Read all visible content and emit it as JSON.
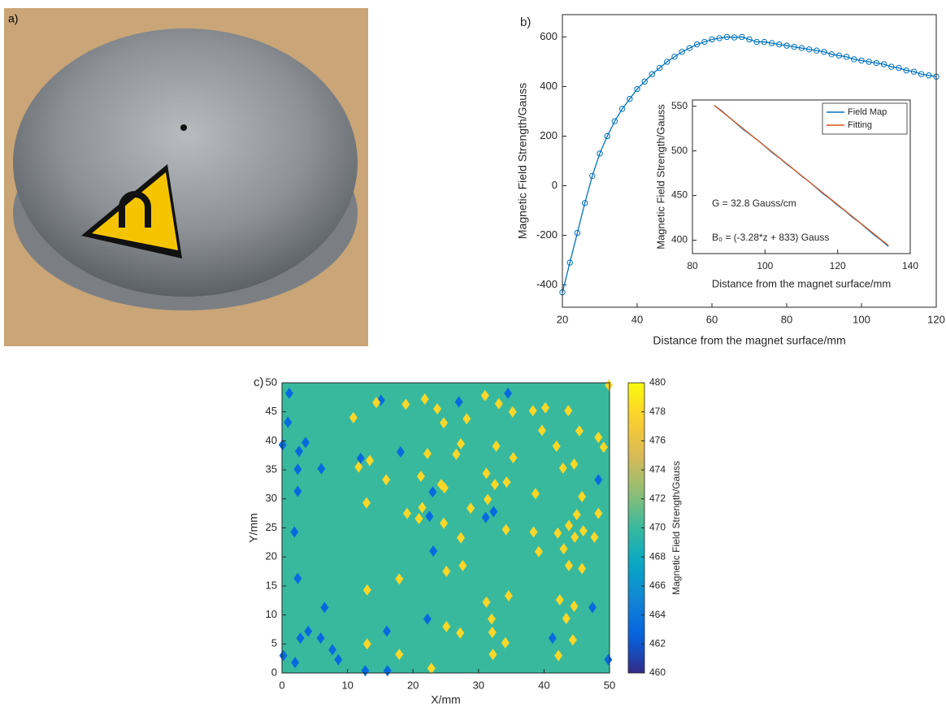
{
  "photo": {
    "label": "a)"
  },
  "chart_data": [
    {
      "type": "line",
      "panel_label": "b)",
      "xlabel": "Distance from the magnet surface/mm",
      "ylabel": "Magnetic Field Strength/Gauss",
      "x": [
        20,
        22,
        24,
        26,
        28,
        30,
        32,
        34,
        36,
        38,
        40,
        42,
        44,
        46,
        48,
        50,
        52,
        54,
        56,
        58,
        60,
        62,
        64,
        66,
        68,
        70,
        72,
        74,
        76,
        78,
        80,
        82,
        84,
        86,
        88,
        90,
        92,
        94,
        96,
        98,
        100,
        102,
        104,
        106,
        108,
        110,
        112,
        114,
        116,
        118,
        120
      ],
      "series": [
        {
          "color": "#0072bd",
          "marker": "circle",
          "values": [
            -430,
            -310,
            -190,
            -70,
            40,
            130,
            200,
            260,
            310,
            350,
            390,
            420,
            450,
            475,
            500,
            520,
            540,
            555,
            570,
            580,
            590,
            595,
            600,
            598,
            600,
            590,
            580,
            580,
            575,
            570,
            565,
            560,
            555,
            550,
            545,
            540,
            530,
            525,
            520,
            510,
            505,
            500,
            495,
            490,
            480,
            475,
            465,
            460,
            450,
            445,
            440
          ]
        }
      ],
      "xlim": [
        20,
        120
      ],
      "ylim": [
        -490,
        690
      ],
      "xticks": [
        20,
        40,
        60,
        80,
        100,
        120
      ],
      "yticks": [
        -400,
        -200,
        0,
        200,
        400,
        600
      ]
    },
    {
      "type": "line",
      "inset": true,
      "xlabel": "Distance from the magnet surface/mm",
      "ylabel": "Magnetic Field Strength/Gauss",
      "legend": "upper right",
      "series": [
        {
          "name": "Field Map",
          "color": "#0072bd",
          "x": [
            86,
            88,
            90,
            92,
            94,
            96,
            98,
            100,
            102,
            104,
            106,
            108,
            110,
            112,
            114,
            116,
            118,
            120,
            122,
            124,
            126,
            128,
            130,
            132,
            134
          ],
          "values": [
            551,
            545,
            538,
            531,
            524,
            518,
            512,
            505,
            498,
            492,
            485,
            479,
            472,
            466,
            459,
            452,
            446,
            439,
            433,
            426,
            420,
            413,
            406,
            400,
            393
          ]
        },
        {
          "name": "Fitting",
          "color": "#d95319",
          "x": [
            86,
            134
          ],
          "values": [
            551,
            394
          ]
        }
      ],
      "annotations": [
        "G = 32.8 Gauss/cm",
        "B₀ = (-3.28*z + 833) Gauss"
      ],
      "xlim": [
        80,
        140
      ],
      "ylim": [
        385,
        557
      ],
      "xticks": [
        80,
        100,
        120,
        140
      ],
      "yticks": [
        400,
        450,
        500,
        550
      ]
    },
    {
      "type": "heatmap",
      "panel_label": "c)",
      "xlabel": "X/mm",
      "ylabel": "Y/mm",
      "colorbar_label": "Magnetic Field Strength/Gauss",
      "colormap": "parula",
      "background_value": 470,
      "spots": {
        "x": [
          1.1,
          0.9,
          0.1,
          3.6,
          2.6,
          2.4,
          6,
          2.4,
          1.9,
          2.4,
          6.5,
          4,
          2.8,
          5.9,
          7.7,
          8.6,
          0.2,
          2,
          12.7,
          16.1,
          15.1,
          27,
          34.5,
          18.1,
          12,
          23,
          22.5,
          31.1,
          32.3,
          23.1,
          16,
          22.2,
          41.3,
          47.4,
          48.3,
          49.8,
          14.4,
          10.9,
          18.9,
          21.8,
          23.7,
          24.7,
          28.2,
          31,
          33.1,
          35.2,
          38.3,
          40.2,
          43.7,
          45.4,
          48.3,
          49.1,
          49.9,
          39.7,
          32.7,
          35.3,
          27.3,
          26.6,
          22.2,
          21.2,
          24.3,
          31.2,
          32.5,
          34.3,
          38.7,
          41.9,
          42.9,
          44.6,
          45.8,
          45,
          48.3,
          31.4,
          28.8,
          24.8,
          15.9,
          12.9,
          11.7,
          13.4,
          19.1,
          21.4,
          24.7,
          27.3,
          20.9,
          34.2,
          38.4,
          42.1,
          43.8,
          44.7,
          46,
          47.7,
          39.2,
          43,
          43.8,
          45.8,
          25.1,
          27.6,
          17.9,
          13,
          31.2,
          34.6,
          32,
          42.4,
          44.6,
          43.4,
          44.4,
          42.2,
          25.1,
          27.2,
          13,
          17.9,
          22.8,
          32.1,
          32.2,
          34.1
        ],
        "y": [
          48.2,
          43.2,
          39.3,
          39.7,
          38.2,
          35.1,
          35.2,
          31.3,
          24.3,
          16.3,
          11.3,
          7.2,
          6,
          6,
          4,
          2.3,
          3,
          1.8,
          0.4,
          0.4,
          47,
          46.7,
          48.2,
          38.1,
          37,
          31.2,
          27,
          26.8,
          27.8,
          21,
          7.2,
          9.3,
          6,
          11.3,
          33.3,
          2.3,
          46.6,
          44,
          46.3,
          47.2,
          45.5,
          43.1,
          43.8,
          47.8,
          46.4,
          45,
          45.2,
          45.7,
          45.2,
          41.7,
          40.6,
          38.9,
          49.6,
          41.8,
          39.1,
          37.1,
          39.5,
          37.7,
          37.8,
          33.9,
          32.5,
          34.4,
          32.5,
          32.9,
          30.9,
          39.1,
          35.3,
          36,
          30.4,
          27.3,
          27.5,
          29.9,
          28.4,
          31.9,
          33.3,
          29.3,
          35.5,
          36.6,
          27.5,
          28.5,
          25.8,
          23.3,
          26.6,
          24.7,
          24.3,
          24.1,
          25.4,
          23.4,
          24.5,
          23.4,
          20.9,
          21.4,
          18.5,
          18,
          17.5,
          18.5,
          16.2,
          14.3,
          12.2,
          13.3,
          9.3,
          12.6,
          11.5,
          9.4,
          5.7,
          3,
          8,
          6.9,
          5,
          3.2,
          0.8,
          7,
          3.2,
          5.2
        ],
        "values": [
          463,
          463,
          463,
          463,
          463,
          463,
          463,
          463,
          463,
          463,
          463,
          463,
          463,
          463,
          463,
          463,
          463,
          463,
          463,
          463,
          463,
          463,
          463,
          463,
          463,
          463,
          463,
          463,
          463,
          463,
          463,
          463,
          463,
          463,
          463,
          463,
          478,
          478,
          478,
          478,
          478,
          478,
          478,
          478,
          478,
          478,
          478,
          478,
          478,
          478,
          478,
          478,
          478,
          478,
          478,
          478,
          478,
          478,
          478,
          478,
          478,
          478,
          478,
          478,
          478,
          478,
          478,
          478,
          478,
          478,
          478,
          478,
          478,
          478,
          478,
          478,
          478,
          478,
          478,
          478,
          478,
          478,
          478,
          478,
          478,
          478,
          478,
          478,
          478,
          478,
          478,
          478,
          478,
          478,
          478,
          478,
          478,
          478,
          478,
          478,
          478,
          478,
          478,
          478,
          478,
          478,
          478,
          478,
          478,
          478,
          478,
          478,
          478,
          478
        ]
      },
      "xlim": [
        0,
        50
      ],
      "ylim": [
        0,
        50
      ],
      "xticks": [
        0,
        10,
        20,
        30,
        40,
        50
      ],
      "yticks": [
        0,
        5,
        10,
        15,
        20,
        25,
        30,
        35,
        40,
        45,
        50
      ],
      "clim": [
        460,
        480
      ],
      "cticks": [
        460,
        462,
        464,
        466,
        468,
        470,
        472,
        474,
        476,
        478,
        480
      ]
    }
  ]
}
